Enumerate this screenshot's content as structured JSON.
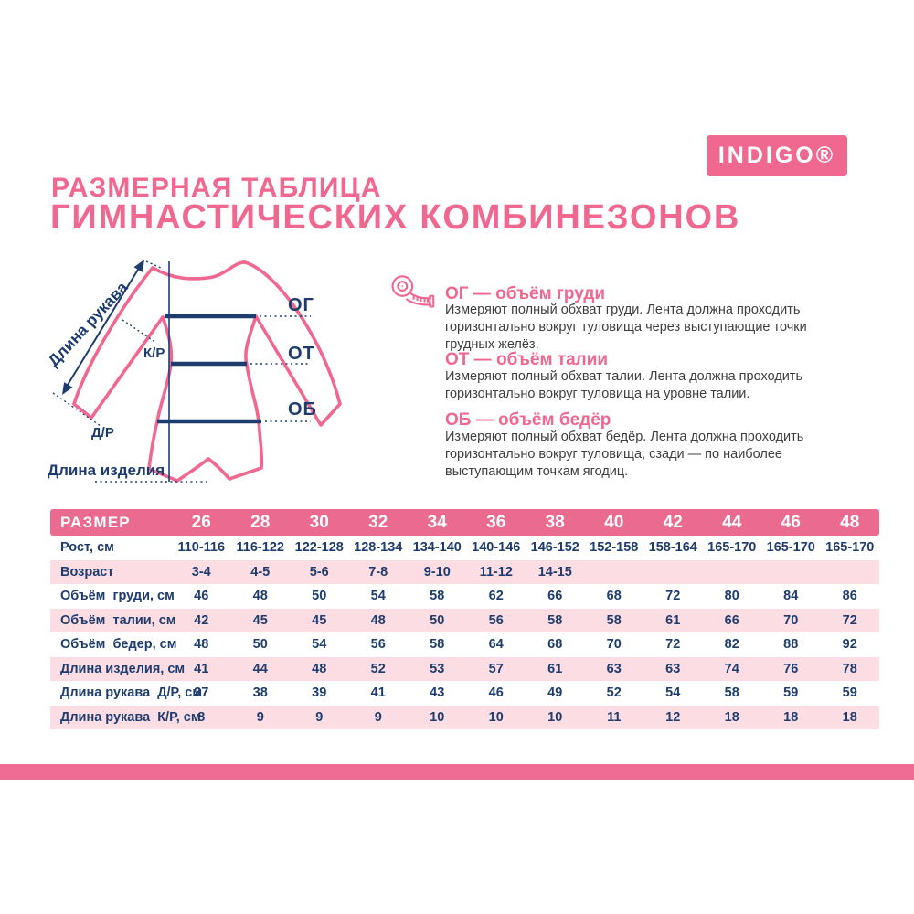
{
  "header": {
    "brand": "INDIGO®",
    "title_line1": "РАЗМЕРНАЯ ТАБЛИЦА",
    "title_line2": "ГИМНАСТИЧЕСКИХ КОМБИНЕЗОНОВ"
  },
  "diagram": {
    "labels": {
      "sleeve_length": "Длина рукава",
      "short_sleeve": "К/Р",
      "long_sleeve": "Д/Р",
      "chest": "ОГ",
      "waist": "ОТ",
      "hips": "ОБ",
      "product_length": "Длина изделия"
    }
  },
  "legend": {
    "items": [
      {
        "heading": "ОГ — объём груди",
        "body": "Измеряют полный обхват груди. Лента должна проходить\nгоризонтально вокруг туловища через выступающие точки\nгрудных желёз."
      },
      {
        "heading": "ОТ — объём талии",
        "body": "Измеряют полный обхват талии. Лента должна проходить\nгоризонтально вокруг туловища на уровне талии."
      },
      {
        "heading": "ОБ — объём бедёр",
        "body": "Измеряют полный обхват бедёр. Лента должна проходить\nгоризонтально вокруг туловища, сзади — по наиболее\nвыступающим точкам ягодиц."
      }
    ]
  },
  "table": {
    "header_label": "РАЗМЕР",
    "sizes": [
      "26",
      "28",
      "30",
      "32",
      "34",
      "36",
      "38",
      "40",
      "42",
      "44",
      "46",
      "48"
    ],
    "rows": [
      {
        "label": "Рост, см",
        "values": [
          "110-116",
          "116-122",
          "122-128",
          "128-134",
          "134-140",
          "140-146",
          "146-152",
          "152-158",
          "158-164",
          "165-170",
          "165-170",
          "165-170"
        ]
      },
      {
        "label": "Возраст",
        "values": [
          "3-4",
          "4-5",
          "5-6",
          "7-8",
          "9-10",
          "11-12",
          "14-15",
          "",
          "",
          "",
          "",
          ""
        ]
      },
      {
        "label": "Объём  груди, см",
        "values": [
          "46",
          "48",
          "50",
          "54",
          "58",
          "62",
          "66",
          "68",
          "72",
          "80",
          "84",
          "86"
        ]
      },
      {
        "label": "Объём  талии, см",
        "values": [
          "42",
          "45",
          "45",
          "48",
          "50",
          "56",
          "58",
          "58",
          "61",
          "66",
          "70",
          "72"
        ]
      },
      {
        "label": "Объём  бедер, см",
        "values": [
          "48",
          "50",
          "54",
          "56",
          "58",
          "64",
          "68",
          "70",
          "72",
          "82",
          "88",
          "92"
        ]
      },
      {
        "label": "Длина изделия, см",
        "values": [
          "41",
          "44",
          "48",
          "52",
          "53",
          "57",
          "61",
          "63",
          "63",
          "74",
          "76",
          "78"
        ]
      },
      {
        "label": "Длина рукава  Д/Р, см",
        "values": [
          "37",
          "38",
          "39",
          "41",
          "43",
          "46",
          "49",
          "52",
          "54",
          "58",
          "59",
          "59"
        ]
      },
      {
        "label": "Длина рукава  К/Р, см",
        "values": [
          "8",
          "9",
          "9",
          "9",
          "10",
          "10",
          "10",
          "11",
          "12",
          "18",
          "18",
          "18"
        ]
      }
    ]
  },
  "colors": {
    "pink": "#f0678f",
    "pink_header": "#ea6a90",
    "pink_row_bg": "#fcdde4",
    "pink_band": "#ef6d95",
    "navy": "#1e3c6d",
    "body_text": "#3e3e3e"
  }
}
